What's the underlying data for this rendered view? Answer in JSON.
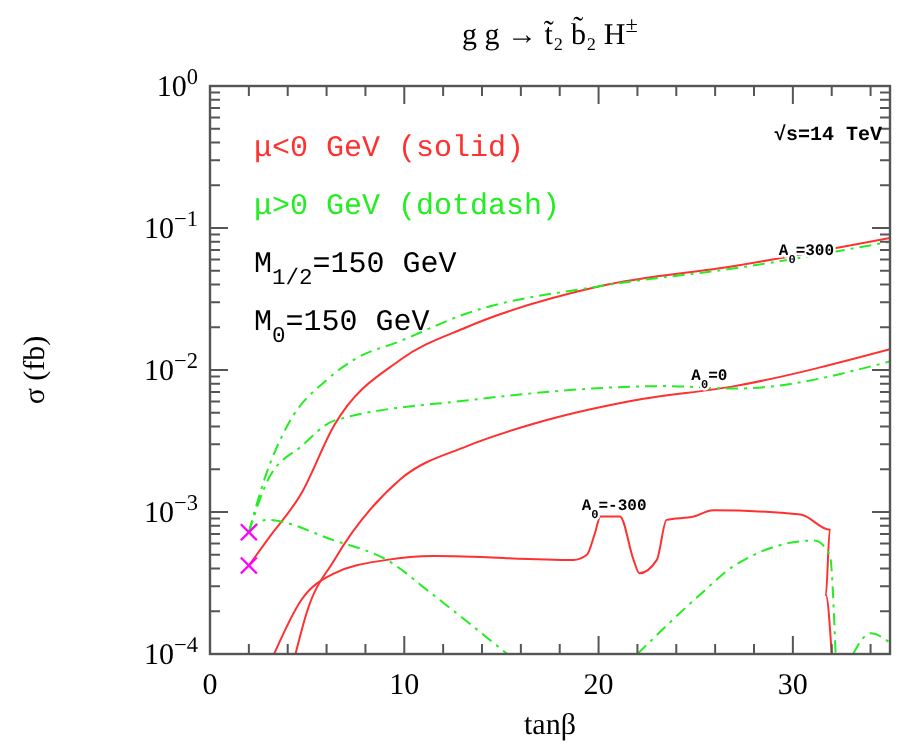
{
  "chart_data": {
    "type": "line",
    "title": "g g → t̃₂ b̃₂ H$^{±}$",
    "xlabel": "tanβ",
    "ylabel": "σ (fb)",
    "log": "y",
    "legend": "top left",
    "grid": false,
    "xlim": [
      0,
      35
    ],
    "ylim": [
      0.0001,
      1
    ],
    "xticks": [
      0,
      {
        "value": 2,
        "label": null
      },
      {
        "value": 4,
        "label": null
      },
      {
        "value": 6,
        "label": null
      },
      {
        "value": 8,
        "label": null
      },
      10,
      {
        "value": 12,
        "label": null
      },
      {
        "value": 14,
        "label": null
      },
      {
        "value": 16,
        "label": null
      },
      {
        "value": 18,
        "label": null
      },
      20,
      {
        "value": 22,
        "label": null
      },
      {
        "value": 24,
        "label": null
      },
      {
        "value": 26,
        "label": null
      },
      {
        "value": 28,
        "label": null
      },
      30,
      {
        "value": 32,
        "label": null
      },
      {
        "value": 34,
        "label": null
      }
    ],
    "yticks": [
      {
        "value": 0.0001,
        "label": "10$^{−4}$"
      },
      {
        "value": 0.0002,
        "label": null
      },
      {
        "value": 0.0003,
        "label": null
      },
      {
        "value": 0.0004,
        "label": null
      },
      {
        "value": 0.0005,
        "label": null
      },
      {
        "value": 0.0006,
        "label": null
      },
      {
        "value": 0.0007,
        "label": null
      },
      {
        "value": 0.0008,
        "label": null
      },
      {
        "value": 0.0009,
        "label": null
      },
      {
        "value": 0.001,
        "label": "10$^{−3}$"
      },
      {
        "value": 0.002,
        "label": null
      },
      {
        "value": 0.003,
        "label": null
      },
      {
        "value": 0.004,
        "label": null
      },
      {
        "value": 0.005,
        "label": null
      },
      {
        "value": 0.006,
        "label": null
      },
      {
        "value": 0.007,
        "label": null
      },
      {
        "value": 0.008,
        "label": null
      },
      {
        "value": 0.009,
        "label": null
      },
      {
        "value": 0.01,
        "label": "10$^{−2}$"
      },
      {
        "value": 0.02,
        "label": null
      },
      {
        "value": 0.03,
        "label": null
      },
      {
        "value": 0.04,
        "label": null
      },
      {
        "value": 0.05,
        "label": null
      },
      {
        "value": 0.06,
        "label": null
      },
      {
        "value": 0.07,
        "label": null
      },
      {
        "value": 0.08,
        "label": null
      },
      {
        "value": 0.09,
        "label": null
      },
      {
        "value": 0.1,
        "label": "10$^{−1}$"
      },
      {
        "value": 0.2,
        "label": null
      },
      {
        "value": 0.3,
        "label": null
      },
      {
        "value": 0.4,
        "label": null
      },
      {
        "value": 0.5,
        "label": null
      },
      {
        "value": 0.6,
        "label": null
      },
      {
        "value": 0.7,
        "label": null
      },
      {
        "value": 0.8,
        "label": null
      },
      {
        "value": 0.9,
        "label": null
      },
      {
        "value": 1,
        "label": "10$^{0}$"
      }
    ],
    "series": [
      {
        "name": "μ<0 GeV (solid)",
        "color": "#ff3030",
        "line_style": "solid",
        "x": [
          2,
          3,
          4.7,
          6.4,
          9.8,
          13.2,
          20.1,
          27,
          35
        ],
        "values": [
          0.00042,
          0.00065,
          0.00135,
          0.0041,
          0.0118,
          0.02,
          0.039,
          0.054,
          0.085
        ]
      },
      {
        "name": "μ>0 GeV (dotdash)",
        "color": "#22ee22",
        "line_style": "dashdot",
        "x": [
          2,
          2.8,
          4,
          6,
          7.4,
          9.8,
          13.2,
          20.1,
          27,
          35
        ],
        "values": [
          0.00072,
          0.0017,
          0.0041,
          0.0085,
          0.0118,
          0.016,
          0.025,
          0.039,
          0.052,
          0.08
        ]
      },
      {
        "color": "#ff3030",
        "line_style": "solid",
        "x": [
          4.4,
          5,
          6.4,
          9.8,
          13.2,
          16.7,
          21.8,
          27,
          35
        ],
        "values": [
          0.0001,
          0.0002,
          0.00046,
          0.0017,
          0.0029,
          0.0042,
          0.0061,
          0.0077,
          0.014
        ]
      },
      {
        "color": "#22ee22",
        "line_style": "dashdot",
        "x": [
          2,
          3,
          4.7,
          6.4,
          13.2,
          23.5,
          27,
          35
        ],
        "values": [
          0.00072,
          0.0017,
          0.0029,
          0.0044,
          0.0061,
          0.0077,
          0.0074,
          0.0115
        ]
      },
      {
        "color": "#ff3030",
        "line_style": "solid",
        "x": [
          3.3,
          4.7,
          6.4,
          9.1,
          11.5,
          18.7,
          19.4,
          19.8,
          20.1,
          21.1,
          21.8,
          22.1,
          23,
          23.5,
          24.9,
          25.9,
          30.4,
          31.9,
          31.7,
          32
        ],
        "values": [
          0.0001,
          0.00024,
          0.00037,
          0.00046,
          0.00049,
          0.00046,
          0.0005,
          0.0007,
          0.00093,
          0.00093,
          0.00046,
          0.00037,
          0.00046,
          0.00088,
          0.00093,
          0.00103,
          0.00096,
          0.00075,
          0.00026,
          0.0001
        ]
      },
      {
        "color": "#22ee22",
        "line_style": "dashdot",
        "x": [
          2,
          2.9,
          6.4,
          9.1,
          11.5,
          15.3,
          null,
          22,
          25.2,
          27,
          31.1,
          31.9,
          32.2,
          null,
          33.1,
          34,
          35
        ],
        "values": [
          0.00072,
          0.00088,
          0.00063,
          0.00046,
          0.00026,
          0.0001,
          null,
          0.0001,
          0.00026,
          0.00042,
          0.00063,
          0.0005,
          0.0001,
          null,
          0.0001,
          0.00014,
          0.00012
        ]
      },
      {
        "type": "scatter",
        "color": "#ff00ff",
        "marker": "cross",
        "x": [
          2,
          2
        ],
        "values": [
          0.00072,
          0.00042
        ]
      }
    ],
    "annotations": [
      "√s=14 TeV",
      "M$_{1/2}$=150 GeV",
      "M$_{0}$=150 GeV",
      {
        "text": "A$_{0}$=300",
        "x": 30.7,
        "y": 0.059
      },
      {
        "text": "A$_{0}$=0",
        "x": 25.7,
        "y": 0.0077
      },
      {
        "text": "A$_{0}$=-300",
        "x": 20.8,
        "y": 0.00093
      }
    ]
  }
}
